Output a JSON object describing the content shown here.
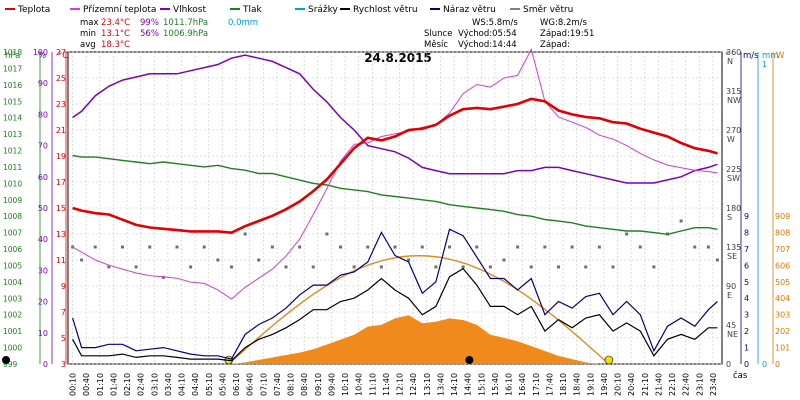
{
  "chart_data": {
    "type": "line",
    "title": "24.8.2015",
    "legend": [
      {
        "name": "Teplota",
        "color": "#e00000"
      },
      {
        "name": "Přízemní teplota",
        "color": "#d040d0"
      },
      {
        "name": "Vlhkost",
        "color": "#8000b0"
      },
      {
        "name": "Tlak",
        "color": "#208020"
      },
      {
        "name": "Srážky",
        "color": "#00a0d0"
      },
      {
        "name": "Rychlost větru",
        "color": "#000000"
      },
      {
        "name": "Náraz větru",
        "color": "#000080"
      },
      {
        "name": "Směr větru",
        "color": "#808080"
      }
    ],
    "stats": {
      "max_label": "max",
      "min_label": "min",
      "avg_label": "avg",
      "max_temp": "23.4°C",
      "max_hum": "99%",
      "max_press": "1011.7hPa",
      "max_rain": "0.0mm",
      "min_temp": "13.1°C",
      "min_hum": "56%",
      "min_press": "1006.9hPa",
      "avg_temp": "18.3°C",
      "ws": "WS:5.8m/s",
      "wg": "WG:8.2m/s",
      "sun_label": "Slunce",
      "sunrise": "Východ:05:54",
      "sunset": "Západ:19:51",
      "moon_label": "Měsíc",
      "moonrise": "Východ:14:44",
      "moonset": "Západ:"
    },
    "axes": {
      "hpa_title": "hPa",
      "pct_title": "%",
      "c_title": "°C",
      "deg_title": "°",
      "ms_title": "m/s",
      "mm_title": "mm",
      "w_title": "W",
      "xlabel": "čas",
      "hpa_ticks": [
        "1018",
        "1017",
        "1016",
        "1015",
        "1014",
        "1013",
        "1012",
        "1011",
        "1010",
        "1009",
        "1008",
        "1007",
        "1006",
        "1005",
        "1004",
        "1003",
        "1002",
        "1001",
        "1000",
        "999"
      ],
      "pct_ticks": [
        "100",
        "90",
        "80",
        "70",
        "60",
        "50",
        "40",
        "30",
        "20",
        "10",
        "0"
      ],
      "c_ticks": [
        "27",
        "25",
        "23",
        "21",
        "19",
        "17",
        "15",
        "13",
        "11",
        "9",
        "7",
        "5",
        "3"
      ],
      "deg_ticks": [
        "360",
        "315",
        "270",
        "225",
        "180",
        "135",
        "90",
        "45",
        "0"
      ],
      "dir_labels": [
        "N",
        "NW",
        "W",
        "SW",
        "S",
        "SE",
        "E",
        "NE"
      ],
      "ms_ticks": [
        "9",
        "8",
        "7",
        "6",
        "5",
        "4",
        "3",
        "2",
        "1",
        "0"
      ],
      "mm_ticks": [
        "1",
        "0"
      ],
      "w_ticks": [
        "909",
        "808",
        "707",
        "606",
        "505",
        "404",
        "303",
        "202",
        "101",
        "0"
      ],
      "time_ticks": [
        "00:10",
        "00:40",
        "01:10",
        "01:40",
        "02:10",
        "02:40",
        "03:10",
        "03:40",
        "04:10",
        "04:40",
        "05:10",
        "05:40",
        "06:10",
        "06:40",
        "07:10",
        "07:40",
        "08:10",
        "08:40",
        "09:10",
        "09:40",
        "10:10",
        "10:40",
        "11:10",
        "11:40",
        "12:10",
        "12:40",
        "13:10",
        "13:40",
        "14:10",
        "14:40",
        "15:10",
        "15:40",
        "16:10",
        "16:40",
        "17:10",
        "17:40",
        "18:10",
        "18:40",
        "19:10",
        "19:40",
        "20:10",
        "20:40",
        "21:10",
        "21:40",
        "22:10",
        "22:40",
        "23:10",
        "23:40"
      ]
    },
    "x_hours": [
      0.17,
      0.5,
      1,
      1.5,
      2,
      2.5,
      3,
      3.5,
      4,
      4.5,
      5,
      5.5,
      6,
      6.5,
      7,
      7.5,
      8,
      8.5,
      9,
      9.5,
      10,
      10.5,
      11,
      11.5,
      12,
      12.5,
      13,
      13.5,
      14,
      14.5,
      15,
      15.5,
      16,
      16.5,
      17,
      17.5,
      18,
      18.5,
      19,
      19.5,
      20,
      20.5,
      21,
      21.5,
      22,
      22.5,
      23,
      23.5,
      23.83
    ],
    "series": [
      {
        "name": "Teplota",
        "unit": "°C",
        "values": [
          15.0,
          14.8,
          14.6,
          14.5,
          14.1,
          13.7,
          13.5,
          13.4,
          13.3,
          13.2,
          13.2,
          13.2,
          13.1,
          13.6,
          14.0,
          14.4,
          14.9,
          15.5,
          16.3,
          17.2,
          18.4,
          19.6,
          20.4,
          20.2,
          20.5,
          21.0,
          21.1,
          21.4,
          22.1,
          22.6,
          22.7,
          22.6,
          22.8,
          23.0,
          23.4,
          23.2,
          22.5,
          22.2,
          22.0,
          21.9,
          21.6,
          21.5,
          21.1,
          20.8,
          20.5,
          20.0,
          19.6,
          19.4,
          19.2
        ]
      },
      {
        "name": "Přízemní teplota",
        "unit": "°C",
        "values": [
          12.0,
          11.6,
          11.0,
          10.6,
          10.3,
          10.0,
          9.8,
          9.7,
          9.6,
          9.3,
          9.2,
          8.7,
          8.0,
          8.9,
          9.6,
          10.3,
          11.3,
          12.6,
          14.5,
          16.5,
          18.6,
          19.9,
          20.0,
          20.5,
          20.7,
          20.9,
          21.2,
          21.4,
          22.3,
          23.8,
          24.5,
          24.3,
          25.0,
          25.2,
          27.2,
          23.2,
          22.0,
          21.6,
          21.2,
          20.6,
          20.3,
          19.8,
          19.2,
          18.7,
          18.3,
          18.1,
          17.9,
          17.8,
          17.7
        ]
      },
      {
        "name": "Vlhkost",
        "unit": "%",
        "values": [
          79,
          81,
          86,
          89,
          91,
          92,
          93,
          93,
          93,
          94,
          95,
          96,
          98,
          99,
          98,
          97,
          95,
          93,
          88,
          84,
          79,
          75,
          70,
          69,
          68,
          66,
          63,
          62,
          61,
          61,
          61,
          61,
          61,
          62,
          62,
          63,
          63,
          62,
          61,
          60,
          59,
          58,
          58,
          58,
          59,
          60,
          62,
          63,
          64
        ]
      },
      {
        "name": "Tlak",
        "unit": "hPa",
        "values": [
          1011.7,
          1011.6,
          1011.6,
          1011.5,
          1011.4,
          1011.3,
          1011.2,
          1011.3,
          1011.2,
          1011.1,
          1011.0,
          1011.1,
          1010.9,
          1010.8,
          1010.6,
          1010.6,
          1010.4,
          1010.2,
          1010.0,
          1009.9,
          1009.7,
          1009.6,
          1009.5,
          1009.3,
          1009.2,
          1009.1,
          1009.0,
          1008.9,
          1008.7,
          1008.6,
          1008.5,
          1008.4,
          1008.3,
          1008.1,
          1008.0,
          1007.8,
          1007.7,
          1007.6,
          1007.4,
          1007.3,
          1007.2,
          1007.1,
          1007.1,
          1007.0,
          1006.9,
          1007.1,
          1007.3,
          1007.3,
          1007.2
        ]
      },
      {
        "name": "Rychlost větru",
        "unit": "m/s",
        "values": [
          1.5,
          0.5,
          0.5,
          0.5,
          0.6,
          0.4,
          0.5,
          0.5,
          0.4,
          0.3,
          0.3,
          0.3,
          0.2,
          1.0,
          1.5,
          1.8,
          2.2,
          2.7,
          3.3,
          3.3,
          3.8,
          4.0,
          4.5,
          5.2,
          4.5,
          4.0,
          3.0,
          3.5,
          5.3,
          5.8,
          4.8,
          3.5,
          3.5,
          3.0,
          3.5,
          2.0,
          2.7,
          2.2,
          2.8,
          3.0,
          2.0,
          2.5,
          2.0,
          0.5,
          1.5,
          1.8,
          1.5,
          2.2,
          2.2
        ]
      },
      {
        "name": "Náraz větru",
        "unit": "m/s",
        "values": [
          2.8,
          1.0,
          1.0,
          1.2,
          1.2,
          0.8,
          0.9,
          1.0,
          0.8,
          0.6,
          0.5,
          0.5,
          0.3,
          1.8,
          2.4,
          2.8,
          3.4,
          4.2,
          4.8,
          4.8,
          5.4,
          5.6,
          6.2,
          8.0,
          6.6,
          6.2,
          4.3,
          5.0,
          8.2,
          7.8,
          6.5,
          5.2,
          5.2,
          4.5,
          5.2,
          3.0,
          3.8,
          3.4,
          4.1,
          4.3,
          3.0,
          3.8,
          3.0,
          0.8,
          2.3,
          2.8,
          2.3,
          3.3,
          3.8
        ]
      },
      {
        "name": "Směr větru",
        "unit": "°",
        "values": [
          135,
          120,
          135,
          112,
          135,
          112,
          135,
          100,
          135,
          112,
          135,
          120,
          112,
          150,
          120,
          135,
          112,
          135,
          112,
          150,
          135,
          112,
          135,
          112,
          135,
          120,
          135,
          112,
          135,
          112,
          135,
          112,
          120,
          135,
          112,
          135,
          112,
          135,
          112,
          135,
          112,
          150,
          135,
          112,
          150,
          165,
          135,
          135,
          120
        ]
      }
    ],
    "solar_series": {
      "name": "Solar radiation",
      "unit": "W",
      "values": [
        0,
        0,
        0,
        0,
        0,
        0,
        0,
        0,
        0,
        0,
        0,
        0,
        0,
        10,
        25,
        40,
        55,
        70,
        90,
        120,
        150,
        180,
        230,
        240,
        280,
        300,
        250,
        260,
        280,
        270,
        240,
        180,
        160,
        140,
        110,
        80,
        50,
        30,
        10,
        0,
        0,
        0,
        0,
        0,
        0,
        0,
        0,
        0,
        0
      ]
    },
    "sun_curve": {
      "sunrise_h": 5.9,
      "sunset_h": 19.85,
      "peak_deg": 125
    }
  }
}
